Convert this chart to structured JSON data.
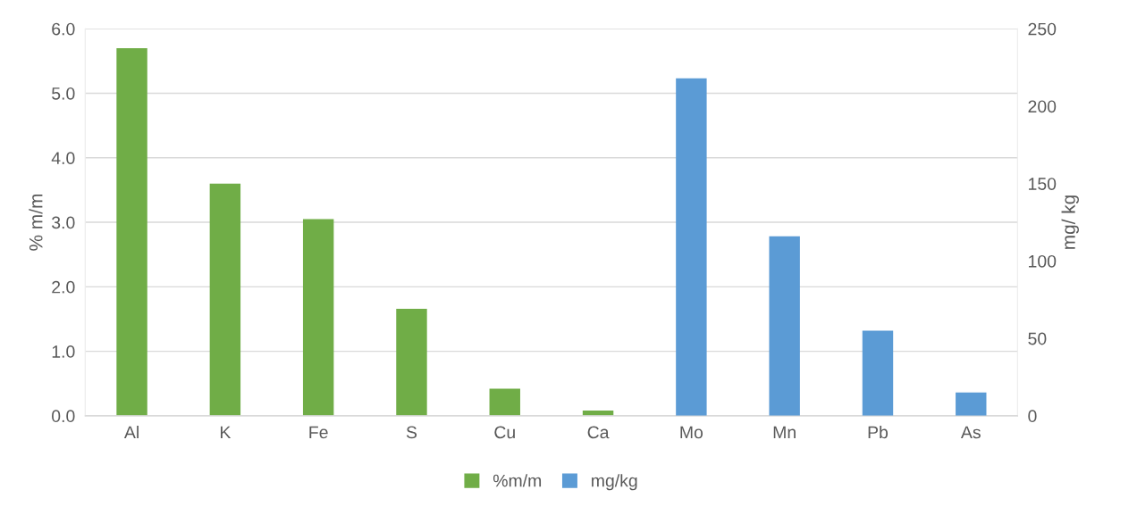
{
  "chart_data": {
    "type": "bar",
    "categories": [
      "Al",
      "K",
      "Fe",
      "S",
      "Cu",
      "Ca",
      "Mo",
      "Mn",
      "Pb",
      "As"
    ],
    "series": [
      {
        "name": "%m/m",
        "color": "#70ad47",
        "values": [
          5.7,
          3.6,
          3.05,
          1.66,
          0.42,
          0.08,
          null,
          null,
          null,
          null
        ]
      },
      {
        "name": "mg/kg",
        "color": "#5b9bd5",
        "axis": "y2",
        "values": [
          null,
          null,
          null,
          null,
          null,
          null,
          218,
          116,
          55,
          15
        ]
      }
    ],
    "ylabel": "% m/m",
    "y2label": "mg/ kg",
    "ylim": [
      0,
      6
    ],
    "yticks": [
      {
        "value": 0,
        "label": "0.0"
      },
      {
        "value": 1,
        "label": "1.0"
      },
      {
        "value": 2,
        "label": "2.0"
      },
      {
        "value": 3,
        "label": "3.0"
      },
      {
        "value": 4,
        "label": "4.0"
      },
      {
        "value": 5,
        "label": "5.0"
      },
      {
        "value": 6,
        "label": "6.0"
      }
    ],
    "y2lim": [
      0,
      250
    ],
    "y2ticks": [
      0,
      50,
      100,
      150,
      200,
      250
    ],
    "grid": "y",
    "legend": "bottom"
  }
}
